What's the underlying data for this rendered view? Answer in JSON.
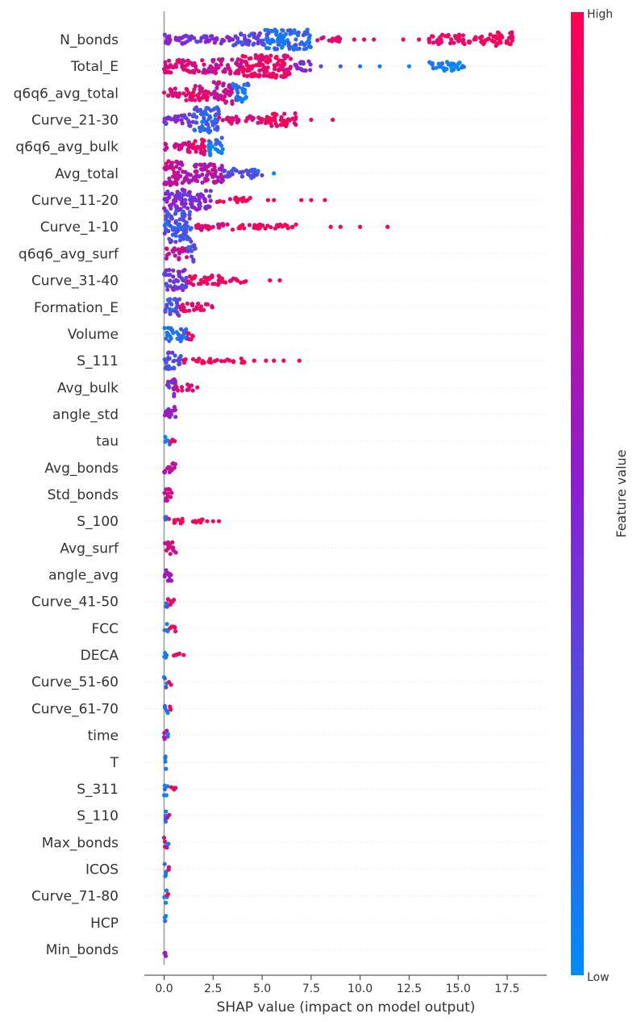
{
  "chart_data": {
    "type": "scatter",
    "subtype": "shap_beeswarm",
    "xlabel": "SHAP value (impact on model output)",
    "xlim": [
      -0.95,
      18.7
    ],
    "xticks": [
      0.0,
      2.5,
      5.0,
      7.5,
      10.0,
      12.5,
      15.0,
      17.5
    ],
    "xtick_labels": [
      "0.0",
      "2.5",
      "5.0",
      "7.5",
      "10.0",
      "12.5",
      "15.0",
      "17.5"
    ],
    "colorbar": {
      "label": "Feature value",
      "high_label": "High",
      "low_label": "Low",
      "high_color": "#ff0052",
      "mid_color": "#8a1fd6",
      "low_color": "#008bfb"
    },
    "features": [
      {
        "name": "N_bonds",
        "outliers": [
          {
            "x": 8.7,
            "f": 1
          },
          {
            "x": 9.7,
            "f": 1
          },
          {
            "x": 10.2,
            "f": 1
          },
          {
            "x": 10.7,
            "f": 1
          },
          {
            "x": 12.2,
            "f": 1
          },
          {
            "x": 13.0,
            "f": 1
          }
        ]
      },
      {
        "name": "Total_E",
        "outliers": [
          {
            "x": 8.0,
            "f": 0.3
          },
          {
            "x": 9.0,
            "f": 0.2
          },
          {
            "x": 10.0,
            "f": 0.1
          },
          {
            "x": 11.0,
            "f": 0.05
          },
          {
            "x": 12.5,
            "f": 0
          }
        ]
      },
      {
        "name": "q6q6_avg_total",
        "outliers": []
      },
      {
        "name": "Curve_21-30",
        "outliers": [
          {
            "x": 7.5,
            "f": 1
          },
          {
            "x": 8.6,
            "f": 1
          }
        ]
      },
      {
        "name": "q6q6_avg_bulk",
        "outliers": []
      },
      {
        "name": "Avg_total",
        "outliers": [
          {
            "x": 5.6,
            "f": 0
          }
        ]
      },
      {
        "name": "Curve_11-20",
        "outliers": [
          {
            "x": 5.3,
            "f": 1
          },
          {
            "x": 5.6,
            "f": 1
          },
          {
            "x": 7.0,
            "f": 1
          },
          {
            "x": 7.5,
            "f": 1
          },
          {
            "x": 8.2,
            "f": 1
          }
        ]
      },
      {
        "name": "Curve_1-10",
        "outliers": [
          {
            "x": 8.5,
            "f": 1
          },
          {
            "x": 9.0,
            "f": 1
          },
          {
            "x": 10.0,
            "f": 1
          },
          {
            "x": 11.4,
            "f": 1
          }
        ]
      },
      {
        "name": "q6q6_avg_surf",
        "outliers": []
      },
      {
        "name": "Curve_31-40",
        "outliers": [
          {
            "x": 5.4,
            "f": 1
          },
          {
            "x": 5.9,
            "f": 1
          }
        ]
      },
      {
        "name": "Formation_E",
        "outliers": []
      },
      {
        "name": "Volume",
        "outliers": []
      },
      {
        "name": "S_111",
        "outliers": [
          {
            "x": 4.6,
            "f": 1
          },
          {
            "x": 5.2,
            "f": 1
          },
          {
            "x": 5.6,
            "f": 1
          },
          {
            "x": 6.1,
            "f": 1
          },
          {
            "x": 6.9,
            "f": 1
          }
        ]
      },
      {
        "name": "Avg_bulk",
        "outliers": [
          {
            "x": 1.7,
            "f": 1
          }
        ]
      },
      {
        "name": "angle_std",
        "outliers": []
      },
      {
        "name": "tau",
        "outliers": []
      },
      {
        "name": "Avg_bonds",
        "outliers": []
      },
      {
        "name": "Std_bonds",
        "outliers": []
      },
      {
        "name": "S_100",
        "outliers": [
          {
            "x": 2.2,
            "f": 1
          },
          {
            "x": 2.5,
            "f": 1
          },
          {
            "x": 2.8,
            "f": 1
          }
        ]
      },
      {
        "name": "Avg_surf",
        "outliers": []
      },
      {
        "name": "angle_avg",
        "outliers": []
      },
      {
        "name": "Curve_41-50",
        "outliers": []
      },
      {
        "name": "FCC",
        "outliers": []
      },
      {
        "name": "DECA",
        "outliers": [
          {
            "x": 1.0,
            "f": 1
          }
        ]
      },
      {
        "name": "Curve_51-60",
        "outliers": []
      },
      {
        "name": "Curve_61-70",
        "outliers": []
      },
      {
        "name": "time",
        "outliers": []
      },
      {
        "name": "T",
        "outliers": []
      },
      {
        "name": "S_311",
        "outliers": []
      },
      {
        "name": "S_110",
        "outliers": []
      },
      {
        "name": "Max_bonds",
        "outliers": []
      },
      {
        "name": "ICOS",
        "outliers": []
      },
      {
        "name": "Curve_71-80",
        "outliers": []
      },
      {
        "name": "HCP",
        "outliers": []
      },
      {
        "name": "Min_bonds",
        "outliers": []
      }
    ]
  }
}
